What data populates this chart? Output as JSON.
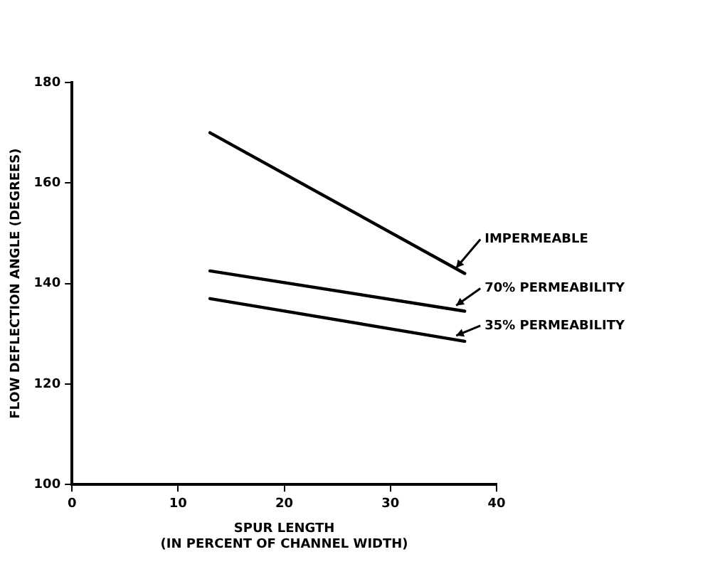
{
  "chart_data": {
    "type": "line",
    "xlabel": "SPUR LENGTH\n(IN PERCENT OF CHANNEL WIDTH)",
    "ylabel": "FLOW DEFLECTION ANGLE (DEGREES)",
    "xlim": [
      0,
      40
    ],
    "xticks": [
      0,
      10,
      20,
      30,
      40
    ],
    "ylim": [
      100,
      180
    ],
    "yticks": [
      100,
      120,
      140,
      160,
      180
    ],
    "x": [
      13,
      37
    ],
    "grid": false,
    "legend": "right",
    "marker": "none",
    "line_style": "solid",
    "series": [
      {
        "name": "IMPERMEABLE",
        "color": "#000000",
        "values": [
          170,
          142
        ]
      },
      {
        "name": "70% PERMEABILITY",
        "color": "#000000",
        "values": [
          142.5,
          134.5
        ]
      },
      {
        "name": "35% PERMEABILITY",
        "color": "#000000",
        "values": [
          137,
          128.5
        ]
      }
    ]
  }
}
